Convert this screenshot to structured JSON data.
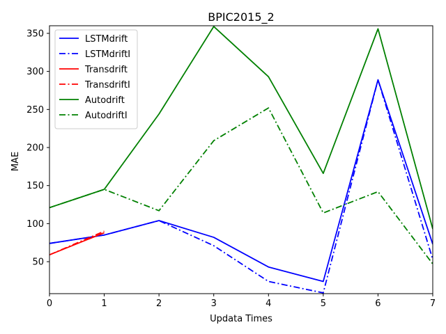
{
  "chart_data": {
    "type": "line",
    "title": "BPIC2015_2",
    "xlabel": "Updata Times",
    "ylabel": "MAE",
    "xlim": [
      0,
      7
    ],
    "ylim": [
      8,
      360
    ],
    "xticks": [
      0,
      1,
      2,
      3,
      4,
      5,
      6,
      7
    ],
    "yticks": [
      50,
      100,
      150,
      200,
      250,
      300,
      350
    ],
    "grid": false,
    "legend_position": "top-left",
    "series": [
      {
        "name": "LSTMdrift",
        "color": "#0000ff",
        "linestyle": "solid",
        "x": [
          0,
          1,
          2,
          3,
          4,
          5,
          6,
          7
        ],
        "y": [
          74,
          85,
          104,
          82,
          43,
          24,
          289,
          73
        ]
      },
      {
        "name": "LSTMdriftI",
        "color": "#0000ff",
        "linestyle": "dashdot",
        "x": [
          0,
          1,
          2,
          3,
          4,
          5,
          6,
          7
        ],
        "y": [
          74,
          85,
          104,
          71,
          24,
          9,
          289,
          53
        ]
      },
      {
        "name": "Transdrift",
        "color": "#ff0000",
        "linestyle": "solid",
        "x": [
          0,
          1
        ],
        "y": [
          59,
          88
        ]
      },
      {
        "name": "TransdriftI",
        "color": "#ff0000",
        "linestyle": "dashdot",
        "x": [
          0,
          1
        ],
        "y": [
          59,
          90
        ]
      },
      {
        "name": "Autodrift",
        "color": "#008000",
        "linestyle": "solid",
        "x": [
          0,
          1,
          2,
          3,
          4,
          5,
          6,
          7
        ],
        "y": [
          121,
          145,
          244,
          359,
          293,
          166,
          356,
          93
        ]
      },
      {
        "name": "AutodriftI",
        "color": "#008000",
        "linestyle": "dashdot",
        "x": [
          0,
          1,
          2,
          3,
          4,
          5,
          6,
          7
        ],
        "y": [
          121,
          145,
          117,
          209,
          252,
          114,
          142,
          47
        ]
      }
    ]
  }
}
